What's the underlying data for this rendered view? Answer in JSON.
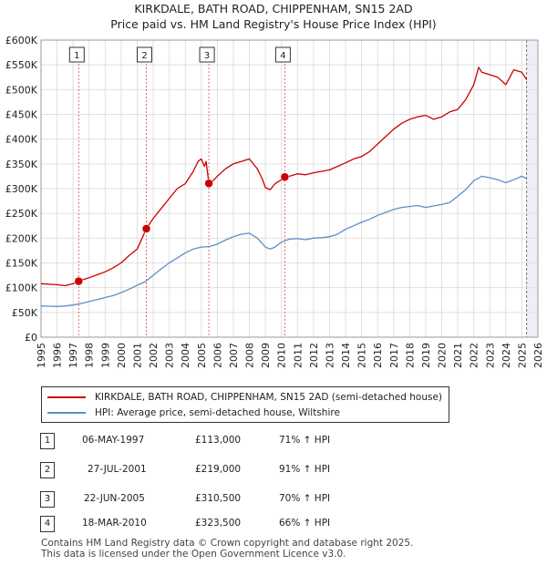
{
  "title_line1": "KIRKDALE, BATH ROAD, CHIPPENHAM, SN15 2AD",
  "title_line2": "Price paid vs. HM Land Registry's House Price Index (HPI)",
  "colors": {
    "property": "#cc0000",
    "hpi": "#5b8fc9",
    "grid": "#e0e0e0",
    "plot_bg": "#ffffff",
    "shade": "#eeeef6"
  },
  "chart_data": {
    "type": "line",
    "x_unit": "year",
    "xlim": [
      1995,
      2026
    ],
    "ylim": [
      0,
      600000
    ],
    "x_ticks": [
      1995,
      1996,
      1997,
      1998,
      1999,
      2000,
      2001,
      2002,
      2003,
      2004,
      2005,
      2006,
      2007,
      2008,
      2009,
      2010,
      2011,
      2012,
      2013,
      2014,
      2015,
      2016,
      2017,
      2018,
      2019,
      2020,
      2021,
      2022,
      2023,
      2024,
      2025,
      2026
    ],
    "y_ticks": [
      {
        "value": 0,
        "label": "£0"
      },
      {
        "value": 50000,
        "label": "£50K"
      },
      {
        "value": 100000,
        "label": "£100K"
      },
      {
        "value": 150000,
        "label": "£150K"
      },
      {
        "value": 200000,
        "label": "£200K"
      },
      {
        "value": 250000,
        "label": "£250K"
      },
      {
        "value": 300000,
        "label": "£300K"
      },
      {
        "value": 350000,
        "label": "£350K"
      },
      {
        "value": 400000,
        "label": "£400K"
      },
      {
        "value": 450000,
        "label": "£450K"
      },
      {
        "value": 500000,
        "label": "£500K"
      },
      {
        "value": 550000,
        "label": "£550K"
      },
      {
        "value": 600000,
        "label": "£600K"
      }
    ],
    "grid": true,
    "shaded_future_from": 2025.3,
    "series": [
      {
        "name": "KIRKDALE, BATH ROAD, CHIPPENHAM, SN15 2AD (semi-detached house)",
        "x": [
          1995,
          1995.5,
          1996,
          1996.5,
          1997,
          1997.35,
          1997.5,
          1998,
          1998.5,
          1999,
          1999.5,
          2000,
          2000.5,
          2001,
          2001.57,
          2002,
          2002.5,
          2003,
          2003.5,
          2004,
          2004.5,
          2004.8,
          2005,
          2005.2,
          2005.3,
          2005.47,
          2005.7,
          2006,
          2006.5,
          2007,
          2007.5,
          2008,
          2008.5,
          2008.8,
          2009,
          2009.3,
          2009.6,
          2010,
          2010.21,
          2010.5,
          2011,
          2011.5,
          2012,
          2012.5,
          2013,
          2013.5,
          2014,
          2014.5,
          2015,
          2015.5,
          2016,
          2016.5,
          2017,
          2017.5,
          2018,
          2018.5,
          2019,
          2019.5,
          2020,
          2020.5,
          2021,
          2021.5,
          2022,
          2022.3,
          2022.5,
          2023,
          2023.5,
          2024,
          2024.5,
          2025,
          2025.3
        ],
        "y": [
          108000,
          107000,
          106000,
          104000,
          108000,
          113000,
          115000,
          120000,
          126000,
          132000,
          140000,
          150000,
          165000,
          178000,
          219000,
          240000,
          260000,
          280000,
          300000,
          310000,
          335000,
          355000,
          360000,
          345000,
          355000,
          310500,
          315000,
          325000,
          340000,
          350000,
          355000,
          360000,
          340000,
          320000,
          302000,
          298000,
          310000,
          318000,
          323500,
          325000,
          330000,
          328000,
          332000,
          335000,
          338000,
          345000,
          352000,
          360000,
          365000,
          375000,
          390000,
          405000,
          420000,
          432000,
          440000,
          445000,
          448000,
          440000,
          445000,
          455000,
          460000,
          480000,
          510000,
          545000,
          535000,
          530000,
          525000,
          510000,
          540000,
          535000,
          520000
        ]
      },
      {
        "name": "HPI: Average price, semi-detached house, Wiltshire",
        "x": [
          1995,
          1995.5,
          1996,
          1996.5,
          1997,
          1997.5,
          1998,
          1998.5,
          1999,
          1999.5,
          2000,
          2000.5,
          2001,
          2001.5,
          2002,
          2002.5,
          2003,
          2003.5,
          2004,
          2004.5,
          2005,
          2005.5,
          2006,
          2006.5,
          2007,
          2007.5,
          2008,
          2008.5,
          2009,
          2009.3,
          2009.6,
          2010,
          2010.5,
          2011,
          2011.5,
          2012,
          2012.5,
          2013,
          2013.5,
          2014,
          2014.5,
          2015,
          2015.5,
          2016,
          2016.5,
          2017,
          2017.5,
          2018,
          2018.5,
          2019,
          2019.5,
          2020,
          2020.5,
          2021,
          2021.5,
          2022,
          2022.5,
          2023,
          2023.5,
          2024,
          2024.5,
          2025,
          2025.3
        ],
        "y": [
          63000,
          62500,
          62000,
          63000,
          65000,
          68000,
          72000,
          76000,
          80000,
          84000,
          90000,
          97000,
          105000,
          112000,
          125000,
          138000,
          150000,
          160000,
          170000,
          178000,
          182000,
          183000,
          188000,
          196000,
          203000,
          208000,
          210000,
          200000,
          182000,
          178000,
          182000,
          192000,
          198000,
          199000,
          197000,
          200000,
          201000,
          203000,
          208000,
          218000,
          225000,
          232000,
          238000,
          246000,
          252000,
          258000,
          262000,
          264000,
          266000,
          262000,
          265000,
          268000,
          272000,
          285000,
          298000,
          316000,
          325000,
          322000,
          318000,
          312000,
          318000,
          325000,
          320000
        ]
      }
    ],
    "sales": [
      {
        "label": "1",
        "x": 1997.35,
        "y": 113000
      },
      {
        "label": "2",
        "x": 2001.57,
        "y": 219000
      },
      {
        "label": "3",
        "x": 2005.47,
        "y": 310500
      },
      {
        "label": "4",
        "x": 2010.21,
        "y": 323500
      }
    ]
  },
  "legend": {
    "property": "KIRKDALE, BATH ROAD, CHIPPENHAM, SN15 2AD (semi-detached house)",
    "hpi": "HPI: Average price, semi-detached house, Wiltshire"
  },
  "transactions": [
    {
      "num": "1",
      "date": "06-MAY-1997",
      "price": "£113,000",
      "hpi": "71% ↑ HPI"
    },
    {
      "num": "2",
      "date": "27-JUL-2001",
      "price": "£219,000",
      "hpi": "91% ↑ HPI"
    },
    {
      "num": "3",
      "date": "22-JUN-2005",
      "price": "£310,500",
      "hpi": "70% ↑ HPI"
    },
    {
      "num": "4",
      "date": "18-MAR-2010",
      "price": "£323,500",
      "hpi": "66% ↑ HPI"
    }
  ],
  "footer": {
    "line1": "Contains HM Land Registry data © Crown copyright and database right 2025.",
    "line2": "This data is licensed under the Open Government Licence v3.0."
  }
}
